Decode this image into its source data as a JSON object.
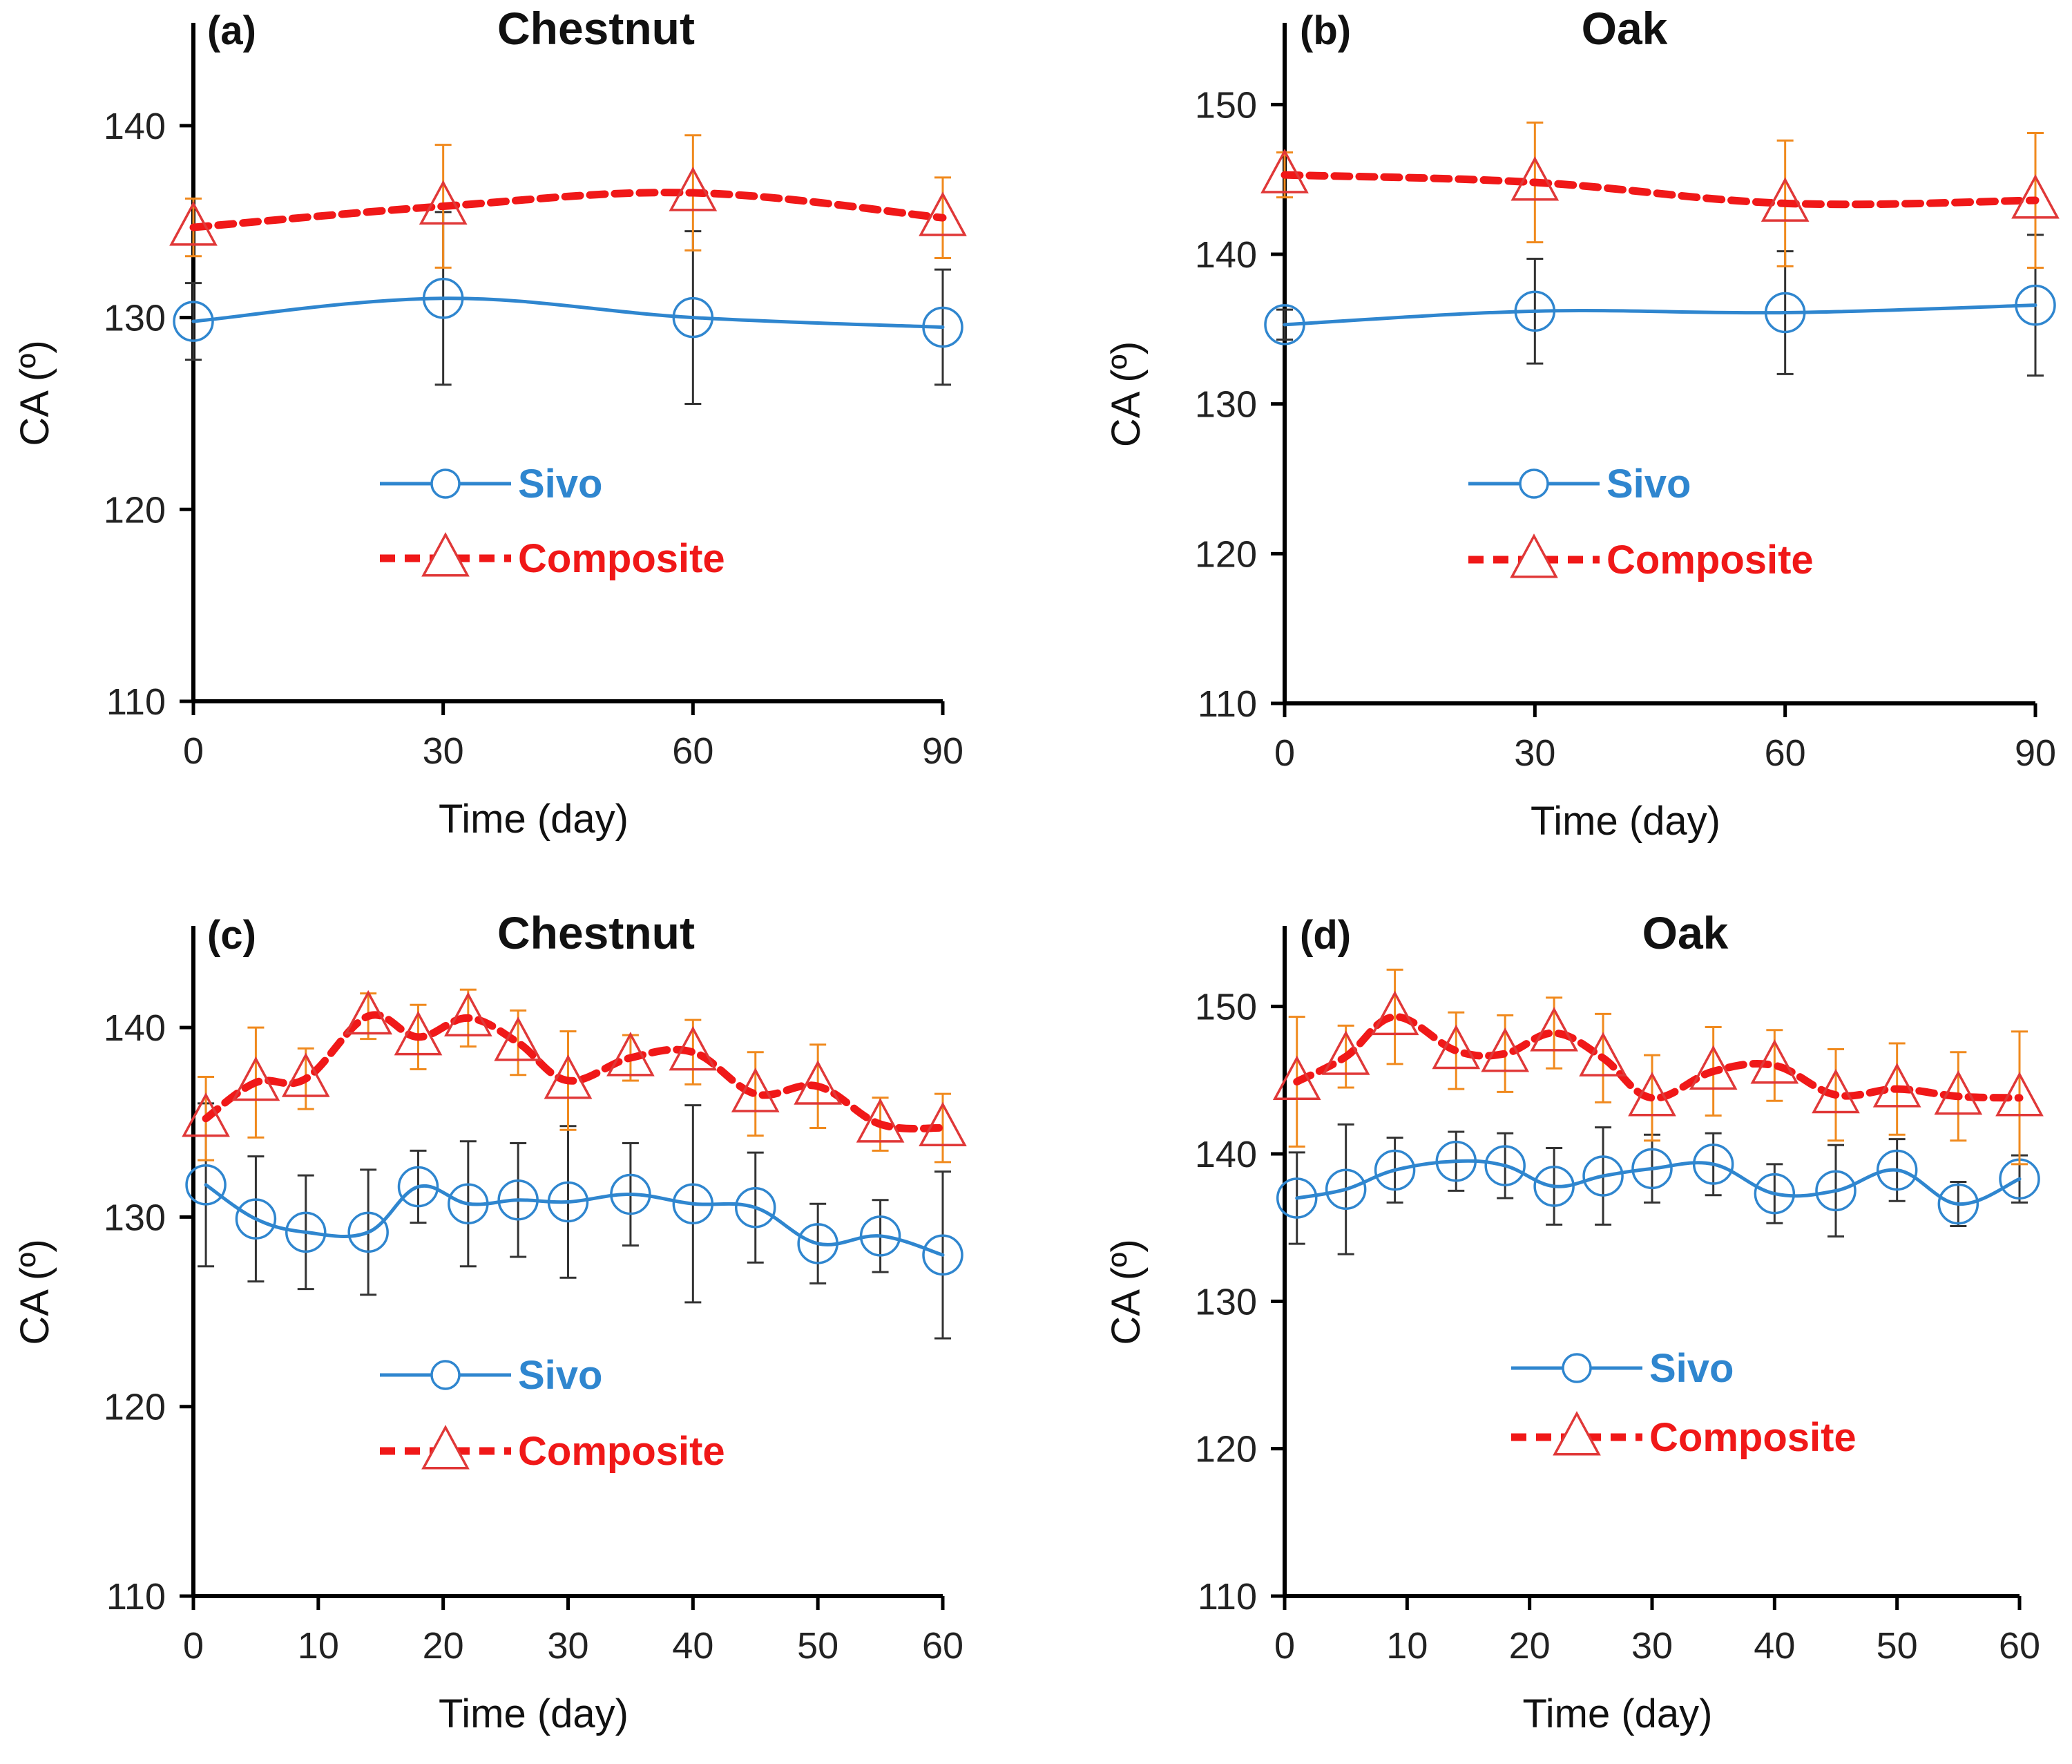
{
  "colors": {
    "sivo": "#2F86CF",
    "composite": "#F01818",
    "composite_marker": "#E03838",
    "composite_error": "#F08A1E",
    "sivo_error": "#333333",
    "axis": "#000000"
  },
  "chart_data": [
    {
      "id": "a",
      "type": "line",
      "panel_label": "(a)",
      "title": "Chestnut",
      "xlabel": "Time (day)",
      "ylabel": "CA (º)",
      "xlim": [
        0,
        90
      ],
      "ylim": [
        110,
        145
      ],
      "xticks": [
        0,
        30,
        60,
        90
      ],
      "yticks": [
        110,
        120,
        130,
        140
      ],
      "legend_position": "center-left",
      "series": [
        {
          "name": "Sivo",
          "x": [
            0,
            30,
            60,
            90
          ],
          "values": [
            129.8,
            131.0,
            130.0,
            129.5
          ],
          "errors": [
            2.0,
            4.5,
            4.5,
            3.0
          ]
        },
        {
          "name": "Composite",
          "x": [
            0,
            30,
            60,
            90
          ],
          "values": [
            134.7,
            135.8,
            136.5,
            135.2
          ],
          "errors": [
            1.5,
            3.2,
            3.0,
            2.1
          ]
        }
      ]
    },
    {
      "id": "b",
      "type": "line",
      "panel_label": "(b)",
      "title": "Oak",
      "xlabel": "Time (day)",
      "ylabel": "CA (º)",
      "xlim": [
        0,
        90
      ],
      "ylim": [
        110,
        155
      ],
      "xticks": [
        0,
        30,
        60,
        90
      ],
      "yticks": [
        110,
        120,
        130,
        140,
        150
      ],
      "legend_position": "center-left",
      "series": [
        {
          "name": "Sivo",
          "x": [
            0,
            30,
            60,
            90
          ],
          "values": [
            135.3,
            136.2,
            136.1,
            136.6
          ],
          "errors": [
            1.0,
            3.5,
            4.1,
            4.7
          ]
        },
        {
          "name": "Composite",
          "x": [
            0,
            30,
            60,
            90
          ],
          "values": [
            145.3,
            144.8,
            143.4,
            143.6
          ],
          "errors": [
            1.5,
            4.0,
            4.2,
            4.5
          ]
        }
      ]
    },
    {
      "id": "c",
      "type": "line",
      "panel_label": "(c)",
      "title": "Chestnut",
      "xlabel": "Time (day)",
      "ylabel": "CA (º)",
      "xlim": [
        0,
        60
      ],
      "ylim": [
        110,
        145
      ],
      "xticks": [
        0,
        10,
        20,
        30,
        40,
        50,
        60
      ],
      "yticks": [
        110,
        120,
        130,
        140
      ],
      "legend_position": "center-left",
      "series": [
        {
          "name": "Sivo",
          "x": [
            1,
            5,
            9,
            14,
            18,
            22,
            26,
            30,
            35,
            40,
            45,
            50,
            55,
            60
          ],
          "values": [
            131.7,
            129.9,
            129.2,
            129.2,
            131.6,
            130.7,
            130.9,
            130.8,
            131.2,
            130.7,
            130.5,
            128.6,
            129.0,
            128.0
          ],
          "errors": [
            4.3,
            3.3,
            3.0,
            3.3,
            1.9,
            3.3,
            3.0,
            4.0,
            2.7,
            5.2,
            2.9,
            2.1,
            1.9,
            4.4
          ]
        },
        {
          "name": "Composite",
          "x": [
            1,
            5,
            9,
            14,
            18,
            22,
            26,
            30,
            35,
            40,
            45,
            50,
            55,
            60
          ],
          "values": [
            135.2,
            137.1,
            137.3,
            140.6,
            139.5,
            140.5,
            139.2,
            137.2,
            138.4,
            138.7,
            136.5,
            136.9,
            134.9,
            134.7
          ],
          "errors": [
            2.2,
            2.9,
            1.6,
            1.2,
            1.7,
            1.5,
            1.7,
            2.6,
            1.2,
            1.7,
            2.2,
            2.2,
            1.4,
            1.8
          ]
        }
      ]
    },
    {
      "id": "d",
      "type": "line",
      "panel_label": "(d)",
      "title": "Oak",
      "xlabel": "Time (day)",
      "ylabel": "CA (º)",
      "xlim": [
        0,
        60
      ],
      "ylim": [
        110,
        155
      ],
      "xticks": [
        0,
        10,
        20,
        30,
        40,
        50,
        60
      ],
      "yticks": [
        110,
        120,
        130,
        140,
        150
      ],
      "legend_position": "center-left",
      "series": [
        {
          "name": "Sivo",
          "x": [
            1,
            5,
            9,
            14,
            18,
            22,
            26,
            30,
            35,
            40,
            45,
            50,
            55,
            60
          ],
          "values": [
            137.0,
            137.6,
            138.9,
            139.5,
            139.2,
            137.8,
            138.5,
            139.0,
            139.3,
            137.3,
            137.5,
            138.9,
            136.6,
            138.3
          ],
          "errors": [
            3.1,
            4.4,
            2.2,
            2.0,
            2.2,
            2.6,
            3.3,
            2.3,
            2.1,
            2.0,
            3.1,
            2.1,
            1.5,
            1.6
          ]
        },
        {
          "name": "Composite",
          "x": [
            1,
            5,
            9,
            14,
            18,
            22,
            26,
            30,
            35,
            40,
            45,
            50,
            55,
            60
          ],
          "values": [
            144.9,
            146.6,
            149.3,
            147.0,
            146.8,
            148.2,
            146.5,
            143.8,
            145.6,
            146.0,
            144.0,
            144.4,
            143.9,
            143.8
          ],
          "errors": [
            4.4,
            2.1,
            3.2,
            2.6,
            2.6,
            2.4,
            3.0,
            2.9,
            3.0,
            2.4,
            3.1,
            3.1,
            3.0,
            4.5
          ]
        }
      ]
    }
  ]
}
